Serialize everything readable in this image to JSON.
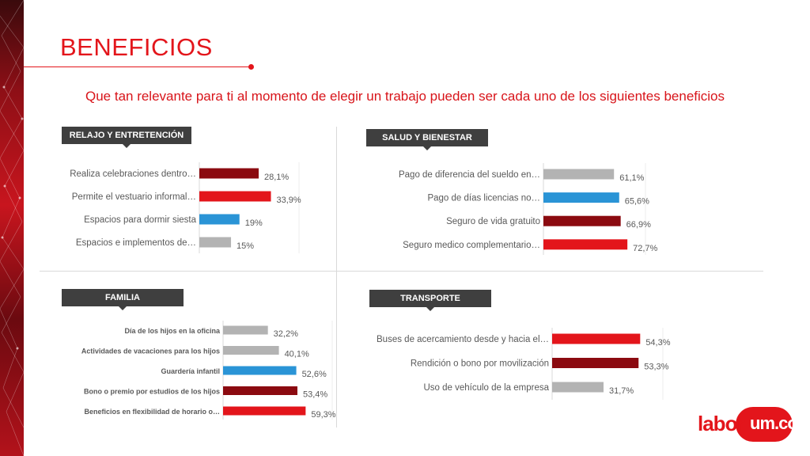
{
  "slide": {
    "title": "BENEFICIOS",
    "subtitle": "Que tan relevante para ti al momento de elegir un trabajo pueden ser cada uno de los siguientes beneficios",
    "logo_text": "laborum.com"
  },
  "colors": {
    "dark_red": "#8b0a10",
    "red": "#e3151b",
    "blue": "#2a94d6",
    "gray": "#b3b3b3",
    "badge": "#3f3f3f"
  },
  "chart_data": [
    {
      "type": "bar",
      "badge": "RELAJO Y ENTRETENCIÓN",
      "categories": [
        "Realiza celebraciones dentro…",
        "Permite el vestuario informal…",
        "Espacios para dormir siesta",
        "Espacios e implementos de…"
      ],
      "values": [
        28.1,
        33.9,
        19,
        15
      ],
      "value_labels": [
        "28,1%",
        "33,9%",
        "19%",
        "15%"
      ],
      "colors": [
        "#8b0a10",
        "#e3151b",
        "#2a94d6",
        "#b3b3b3"
      ],
      "xlim": [
        0,
        90
      ]
    },
    {
      "type": "bar",
      "badge": "SALUD Y BIENESTAR",
      "categories": [
        "Pago de diferencia del sueldo en…",
        "Pago de días licencias no…",
        "Seguro de vida gratuito",
        "Seguro medico complementario…"
      ],
      "values": [
        61.1,
        65.6,
        66.9,
        72.7
      ],
      "value_labels": [
        "61,1%",
        "65,6%",
        "66,9%",
        "72,7%"
      ],
      "colors": [
        "#b3b3b3",
        "#2a94d6",
        "#8b0a10",
        "#e3151b"
      ],
      "xlim": [
        0,
        100
      ]
    },
    {
      "type": "bar",
      "badge": "FAMILIA",
      "categories": [
        "Día de los hijos en la oficina",
        "Actividades de vacaciones para los hijos",
        "Guardería infantil",
        "Bono o premio por estudios de los hijos",
        "Beneficios en flexibilidad de horario o…"
      ],
      "values": [
        32.2,
        40.1,
        52.6,
        53.4,
        59.3
      ],
      "value_labels": [
        "32,2%",
        "40,1%",
        "52,6%",
        "53,4%",
        "59,3%"
      ],
      "colors": [
        "#b3b3b3",
        "#b3b3b3",
        "#2a94d6",
        "#8b0a10",
        "#e3151b"
      ],
      "xlim": [
        0,
        100
      ]
    },
    {
      "type": "bar",
      "badge": "TRANSPORTE",
      "categories": [
        "Buses de acercamiento desde y hacia el…",
        "Rendición o bono por movilización",
        "Uso de vehículo de la empresa"
      ],
      "values": [
        54.3,
        53.3,
        31.7
      ],
      "value_labels": [
        "54,3%",
        "53,3%",
        "31,7%"
      ],
      "colors": [
        "#e3151b",
        "#8b0a10",
        "#b3b3b3"
      ],
      "xlim": [
        0,
        100
      ]
    }
  ]
}
